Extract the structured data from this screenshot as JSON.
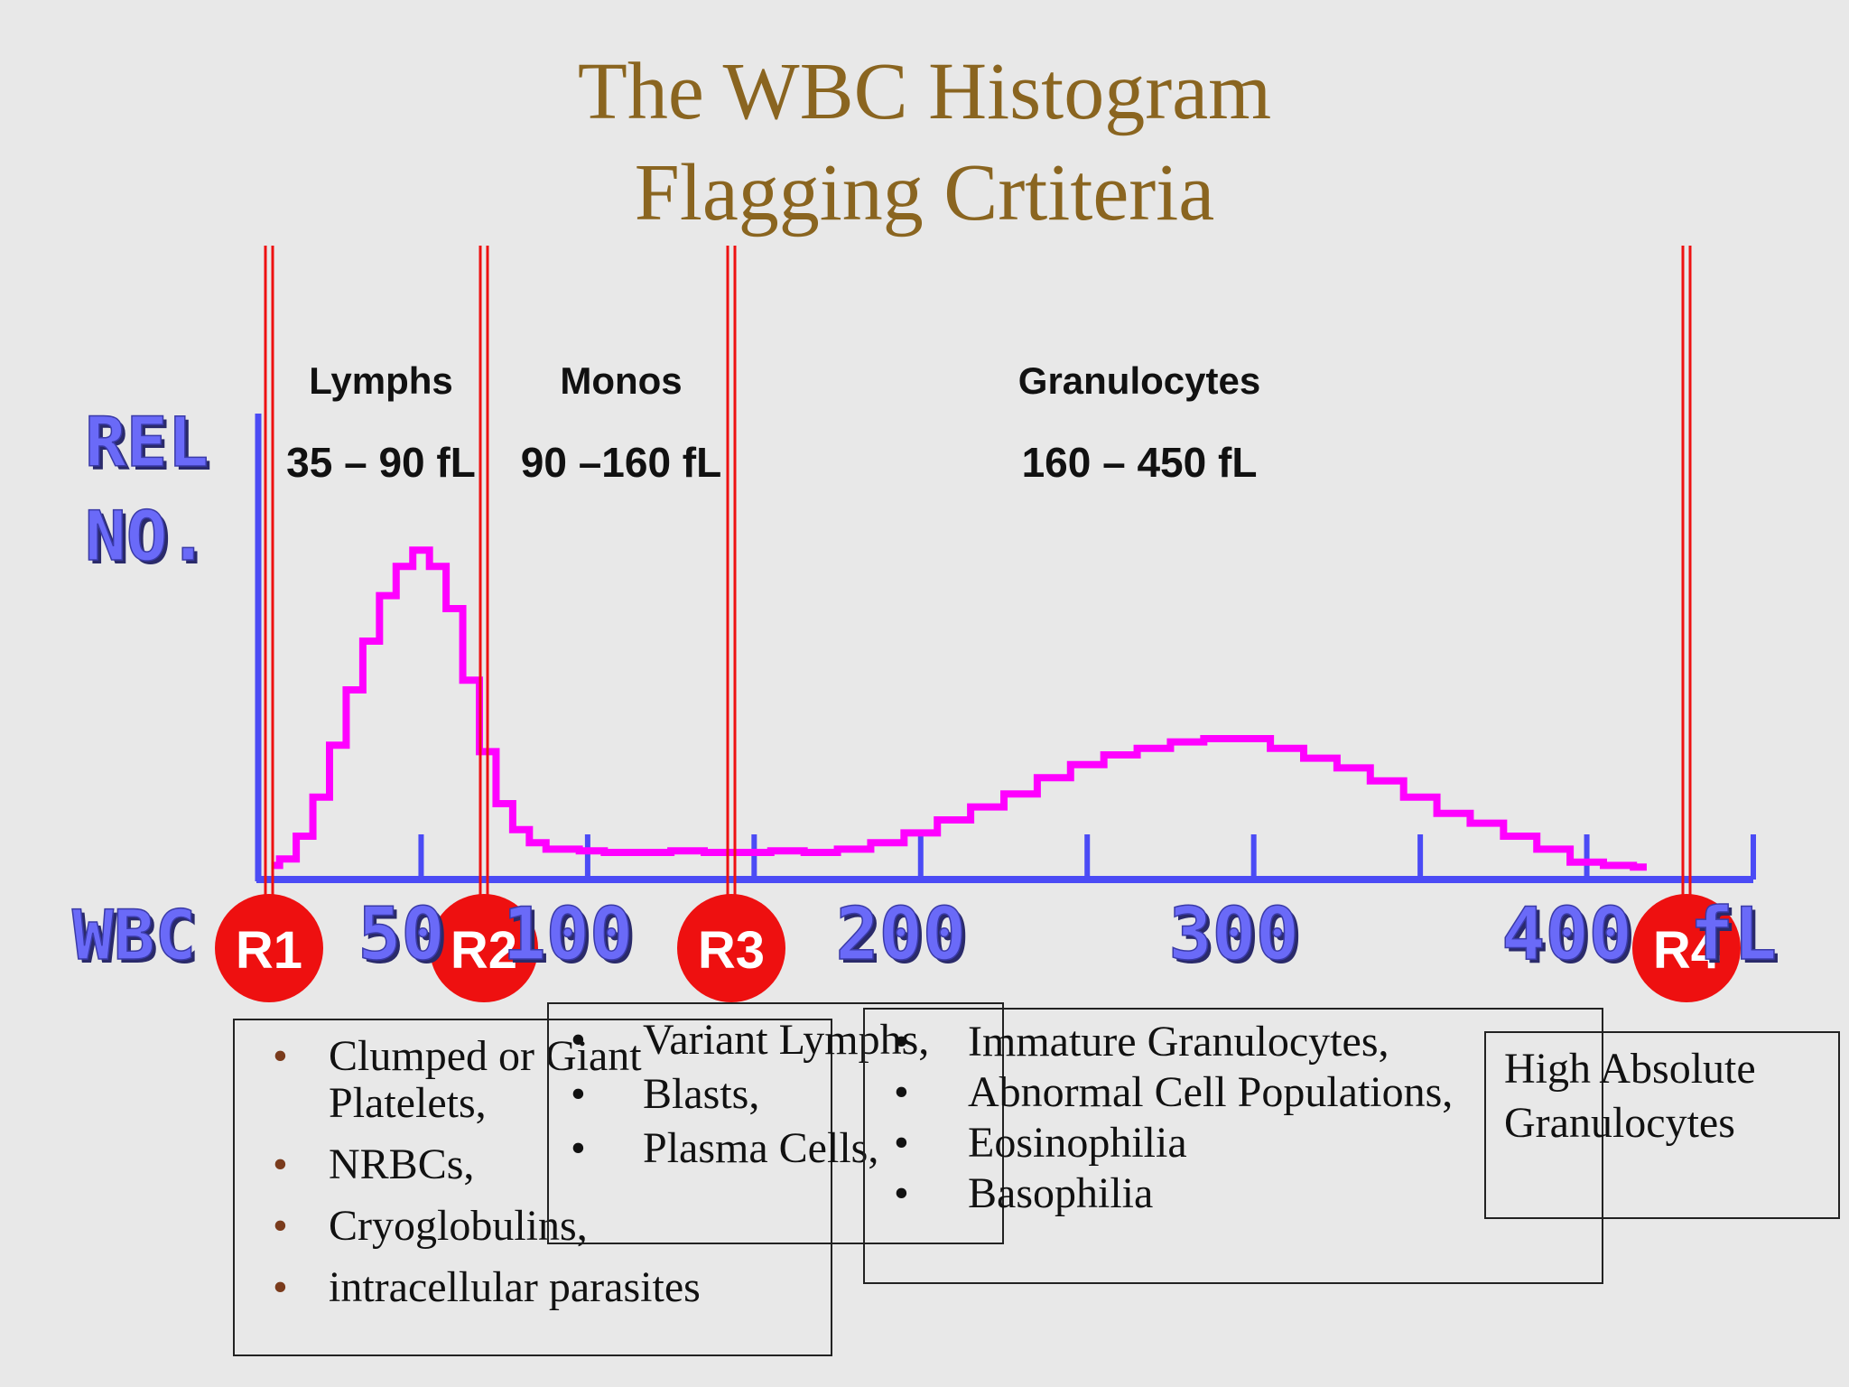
{
  "title": {
    "line1": "The WBC Histogram",
    "line2": "Flagging Crtiteria"
  },
  "chart_data": {
    "type": "area",
    "ylabel_line1": "REL",
    "ylabel_line2": "NO.",
    "xlabel": "WBC",
    "xlim": [
      0,
      450
    ],
    "x_ticks": [
      50,
      100,
      150,
      200,
      250,
      300,
      350,
      400,
      450
    ],
    "x_tick_labels": [
      {
        "x": 50,
        "text": "50"
      },
      {
        "x": 100,
        "text": "100"
      },
      {
        "x": 200,
        "text": "200"
      },
      {
        "x": 300,
        "text": "300"
      },
      {
        "x": 400,
        "text": "400"
      },
      {
        "x": 450,
        "text": "fL"
      }
    ],
    "curve": {
      "color": "#ff00ff",
      "x": [
        5,
        10,
        15,
        20,
        25,
        30,
        35,
        40,
        45,
        50,
        55,
        60,
        65,
        70,
        75,
        80,
        85,
        90,
        95,
        100,
        110,
        120,
        130,
        140,
        150,
        160,
        170,
        180,
        190,
        200,
        210,
        220,
        230,
        240,
        250,
        260,
        270,
        280,
        290,
        300,
        310,
        320,
        330,
        340,
        350,
        360,
        370,
        380,
        390,
        400,
        410,
        418
      ],
      "y": [
        0.01,
        0.03,
        0.1,
        0.22,
        0.38,
        0.55,
        0.7,
        0.84,
        0.93,
        0.98,
        0.93,
        0.8,
        0.58,
        0.36,
        0.2,
        0.12,
        0.08,
        0.06,
        0.06,
        0.055,
        0.05,
        0.05,
        0.055,
        0.05,
        0.05,
        0.055,
        0.05,
        0.06,
        0.08,
        0.11,
        0.15,
        0.19,
        0.23,
        0.28,
        0.32,
        0.35,
        0.37,
        0.39,
        0.4,
        0.4,
        0.37,
        0.34,
        0.31,
        0.27,
        0.22,
        0.17,
        0.14,
        0.1,
        0.06,
        0.02,
        0.01,
        0.005
      ]
    },
    "thresholds": [
      {
        "label": "R1",
        "x": 35
      },
      {
        "label": "R2",
        "x": 90
      },
      {
        "label": "R3",
        "x": 160
      },
      {
        "label": "R4",
        "x": 450
      }
    ],
    "regions": [
      {
        "name": "Lymphs",
        "range": "35 – 90 fL",
        "x_center": 62
      },
      {
        "name": "Monos",
        "range": "90 –160 fL",
        "x_center": 125
      },
      {
        "name": "Granulocytes",
        "range": "160 – 450 fL",
        "x_center": 297
      }
    ],
    "axis_color": "#4b4bf5",
    "threshold_color": "#ee1111"
  },
  "boxes": {
    "r1": {
      "items": [
        "Clumped or Giant",
        "Platelets,",
        "NRBCs,",
        "Cryoglobulins,",
        "intracellular parasites"
      ],
      "bullet": "•"
    },
    "r2": {
      "items": [
        "Variant Lymphs,",
        "Blasts,",
        "Plasma Cells,"
      ],
      "bullet": "•"
    },
    "r3": {
      "items": [
        "Immature Granulocytes,",
        "Abnormal Cell Populations,",
        "Eosinophilia",
        "Basophilia"
      ],
      "bullet": "•"
    },
    "r4": {
      "line1": "High Absolute",
      "line2": "Granulocytes"
    }
  }
}
